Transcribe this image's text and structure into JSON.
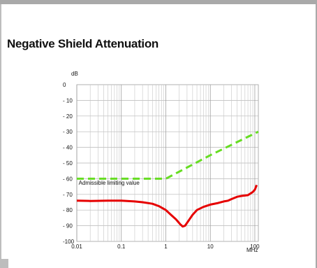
{
  "page": {
    "title": "Negative Shield Attenuation"
  },
  "chart_data": {
    "type": "line",
    "title": "Negative Shield Attenuation",
    "xlabel": "MHz",
    "ylabel": "dB",
    "x_scale": "log",
    "xlim": [
      0.01,
      120
    ],
    "ylim": [
      -100,
      0
    ],
    "grid": true,
    "x_ticks": [
      {
        "value": 0.01,
        "label": "0.01"
      },
      {
        "value": 0.1,
        "label": "0.1"
      },
      {
        "value": 1,
        "label": "1"
      },
      {
        "value": 10,
        "label": "10"
      },
      {
        "value": 100,
        "label": "100"
      }
    ],
    "y_ticks": [
      {
        "value": 0,
        "label": "0"
      },
      {
        "value": -10,
        "label": "- 10"
      },
      {
        "value": -20,
        "label": "- 20"
      },
      {
        "value": -30,
        "label": "- 30"
      },
      {
        "value": -40,
        "label": "- 40"
      },
      {
        "value": -50,
        "label": "- 50"
      },
      {
        "value": -60,
        "label": "- 60"
      },
      {
        "value": -70,
        "label": "- 70"
      },
      {
        "value": -80,
        "label": "- 80"
      },
      {
        "value": -90,
        "label": "- 90"
      },
      {
        "value": -100,
        "label": "-100"
      }
    ],
    "series": [
      {
        "color": "#e60000",
        "style": "solid",
        "x": [
          0.01,
          0.02,
          0.05,
          0.1,
          0.2,
          0.3,
          0.5,
          0.7,
          1,
          1.3,
          1.7,
          2.1,
          2.4,
          2.7,
          3.2,
          4,
          5,
          7,
          10,
          15,
          20,
          25,
          30,
          40,
          50,
          70,
          90,
          100,
          110
        ],
        "y": [
          -74,
          -74.2,
          -74,
          -74,
          -74.5,
          -75,
          -76,
          -77.5,
          -80,
          -83,
          -86,
          -89,
          -90.5,
          -90,
          -87,
          -83,
          -80,
          -78,
          -76.5,
          -75.5,
          -74.5,
          -74,
          -73,
          -71.5,
          -71,
          -70.5,
          -68.5,
          -67,
          -64
        ]
      },
      {
        "color": "#66dd22",
        "style": "dashed",
        "x": [
          0.01,
          0.06,
          0.7,
          1,
          10,
          120
        ],
        "y": [
          -60,
          -60,
          -60,
          -60,
          -45,
          -30
        ]
      }
    ],
    "annotations": [
      {
        "text": "Admissible limiting value",
        "x": 0.011,
        "y": -62.5
      }
    ]
  }
}
